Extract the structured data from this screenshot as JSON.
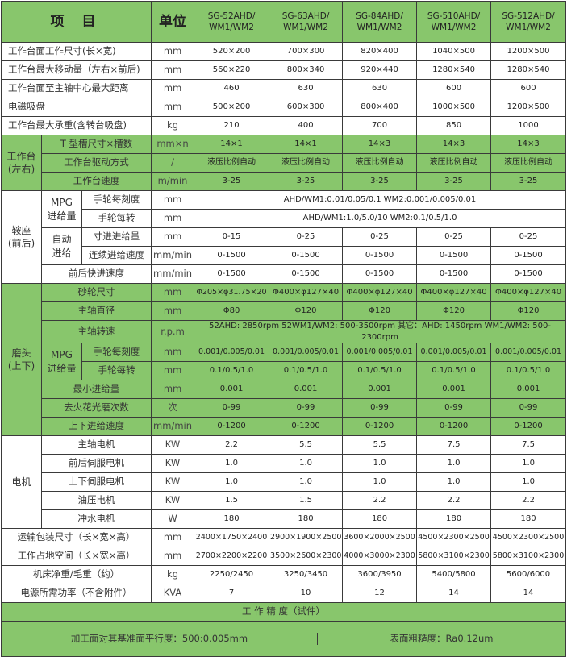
{
  "header": {
    "item": "项 目",
    "unit": "单位",
    "models": [
      "SG-52AHD/\nWM1/WM2",
      "SG-63AHD/\nWM1/WM2",
      "SG-84AHD/\nWM1/WM2",
      "SG-510AHD/\nWM1/WM2",
      "SG-512AHD/\nWM1/WM2"
    ]
  },
  "colors": {
    "green": "#88c66c",
    "border": "#3a3a3a"
  },
  "sections": [
    {
      "group": "",
      "shaded": false,
      "rows": [
        {
          "label": "工作台面工作尺寸(长×宽)",
          "unit": "mm",
          "values": [
            "520×200",
            "700×300",
            "820×400",
            "1040×500",
            "1200×500"
          ]
        },
        {
          "label": "工作台最大移动量（左右×前后)",
          "unit": "mm",
          "values": [
            "560×220",
            "800×340",
            "920×440",
            "1280×540",
            "1280×540"
          ]
        },
        {
          "label": "工作台面至主轴中心最大距离",
          "unit": "mm",
          "values": [
            "460",
            "630",
            "630",
            "600",
            "600"
          ]
        },
        {
          "label": "电磁吸盘",
          "unit": "mm",
          "values": [
            "500×200",
            "600×300",
            "800×400",
            "1000×500",
            "1200×500"
          ]
        },
        {
          "label": "工作台最大承重(含转台吸盘)",
          "unit": "kg",
          "values": [
            "210",
            "400",
            "700",
            "850",
            "1000"
          ]
        }
      ]
    },
    {
      "group": "工作台\n(左右)",
      "shaded": true,
      "rows": [
        {
          "label": "T 型槽尺寸×槽数",
          "unit": "mm×n",
          "values": [
            "14×1",
            "14×1",
            "14×3",
            "14×3",
            "14×3"
          ]
        },
        {
          "label": "工作台驱动方式",
          "unit": "/",
          "values": [
            "液压比例自动",
            "液压比例自动",
            "液压比例自动",
            "液压比例自动",
            "液压比例自动"
          ]
        },
        {
          "label": "工作台速度",
          "unit": "m/min",
          "values": [
            "3-25",
            "3-25",
            "3-25",
            "3-25",
            "3-25"
          ]
        }
      ]
    },
    {
      "group": "鞍座\n(前后)",
      "shaded": false,
      "rows": [
        {
          "sub": "MPG\n进给量",
          "label": "手轮每刻度",
          "unit": "mm",
          "span": "AHD/WM1:0.01/0.05/0.1      WM2:0.001/0.005/0.01"
        },
        {
          "sub": "MPG\n进给量",
          "label": "手轮每转",
          "unit": "mm",
          "span": "AHD/WM1:1.0/5.0/10          WM2:0.1/0.5/1.0"
        },
        {
          "sub": "自动\n进给",
          "label": "寸进进给量",
          "unit": "mm",
          "values": [
            "0-15",
            "0-25",
            "0-25",
            "0-25",
            "0-25"
          ]
        },
        {
          "sub": "自动\n进给",
          "label": "连续进给速度",
          "unit": "mm/min",
          "values": [
            "0-1500",
            "0-1500",
            "0-1500",
            "0-1500",
            "0-1500"
          ]
        },
        {
          "label": "前后快进速度",
          "unit": "mm/min",
          "values": [
            "0-1500",
            "0-1500",
            "0-1500",
            "0-1500",
            "0-1500"
          ]
        }
      ]
    },
    {
      "group": "磨头\n(上下)",
      "shaded": true,
      "rows": [
        {
          "label": "砂轮尺寸",
          "unit": "mm",
          "values": [
            "Φ205×φ31.75×20",
            "Φ400×φ127×40",
            "Φ400×φ127×40",
            "Φ400×φ127×40",
            "Φ400×φ127×40"
          ]
        },
        {
          "label": "主轴直径",
          "unit": "mm",
          "values": [
            "Φ80",
            "Φ120",
            "Φ120",
            "Φ120",
            "Φ120"
          ]
        },
        {
          "label": "主轴转速",
          "unit": "r.p.m",
          "span": "52AHD: 2850rpm  52WM1/WM2: 500-3500rpm  其它：AHD: 1450rpm  WM1/WM2: 500-2300rpm"
        },
        {
          "sub": "MPG\n进给量",
          "label": "手轮每刻度",
          "unit": "mm",
          "values": [
            "0.001/0.005/0.01",
            "0.001/0.005/0.01",
            "0.001/0.005/0.01",
            "0.001/0.005/0.01",
            "0.001/0.005/0.01"
          ]
        },
        {
          "sub": "MPG\n进给量",
          "label": "手轮每转",
          "unit": "mm",
          "values": [
            "0.1/0.5/1.0",
            "0.1/0.5/1.0",
            "0.1/0.5/1.0",
            "0.1/0.5/1.0",
            "0.1/0.5/1.0"
          ]
        },
        {
          "label": "最小进给量",
          "unit": "mm",
          "values": [
            "0.001",
            "0.001",
            "0.001",
            "0.001",
            "0.001"
          ]
        },
        {
          "label": "去火花光磨次数",
          "unit": "次",
          "values": [
            "0-99",
            "0-99",
            "0-99",
            "0-99",
            "0-99"
          ]
        },
        {
          "label": "上下进给速度",
          "unit": "mm/min",
          "values": [
            "0-1200",
            "0-1200",
            "0-1200",
            "0-1200",
            "0-1200"
          ]
        }
      ]
    },
    {
      "group": "电机",
      "shaded": false,
      "rows": [
        {
          "label": "主轴电机",
          "unit": "KW",
          "values": [
            "2.2",
            "5.5",
            "5.5",
            "7.5",
            "7.5"
          ]
        },
        {
          "label": "前后伺服电机",
          "unit": "KW",
          "values": [
            "1.0",
            "1.0",
            "1.0",
            "1.0",
            "1.0"
          ]
        },
        {
          "label": "上下伺服电机",
          "unit": "KW",
          "values": [
            "1.0",
            "1.0",
            "1.0",
            "1.0",
            "1.0"
          ]
        },
        {
          "label": "油压电机",
          "unit": "KW",
          "values": [
            "1.5",
            "1.5",
            "2.2",
            "2.2",
            "2.2"
          ]
        },
        {
          "label": "冲水电机",
          "unit": "W",
          "values": [
            "180",
            "180",
            "180",
            "180",
            "180"
          ]
        }
      ]
    },
    {
      "group": "",
      "shaded": false,
      "center": true,
      "rows": [
        {
          "label": "运输包装尺寸（长×宽×高）",
          "unit": "mm",
          "values": [
            "2400×1750×2400",
            "2900×1900×2500",
            "3600×2000×2500",
            "4500×2300×2500",
            "4500×2300×2500"
          ]
        },
        {
          "label": "工作占地空间（长×宽×高）",
          "unit": "mm",
          "values": [
            "2700×2200×2200",
            "3500×2600×2300",
            "4000×3000×2300",
            "5800×3100×2300",
            "5800×3100×2300"
          ]
        },
        {
          "label": "机床净重/毛重（约）",
          "unit": "kg",
          "values": [
            "2250/2450",
            "3250/3450",
            "3600/3950",
            "5400/5800",
            "5600/6000"
          ]
        },
        {
          "label": "电源所需功率（不含附件）",
          "unit": "KVA",
          "values": [
            "7",
            "10",
            "12",
            "14",
            "14"
          ]
        }
      ]
    }
  ],
  "precision": {
    "title": "工 作 精 度（试件）",
    "parallelism": "加工面对其基准面平行度：500:0.005mm",
    "roughness": "表面粗糙度：Ra0.12um"
  }
}
